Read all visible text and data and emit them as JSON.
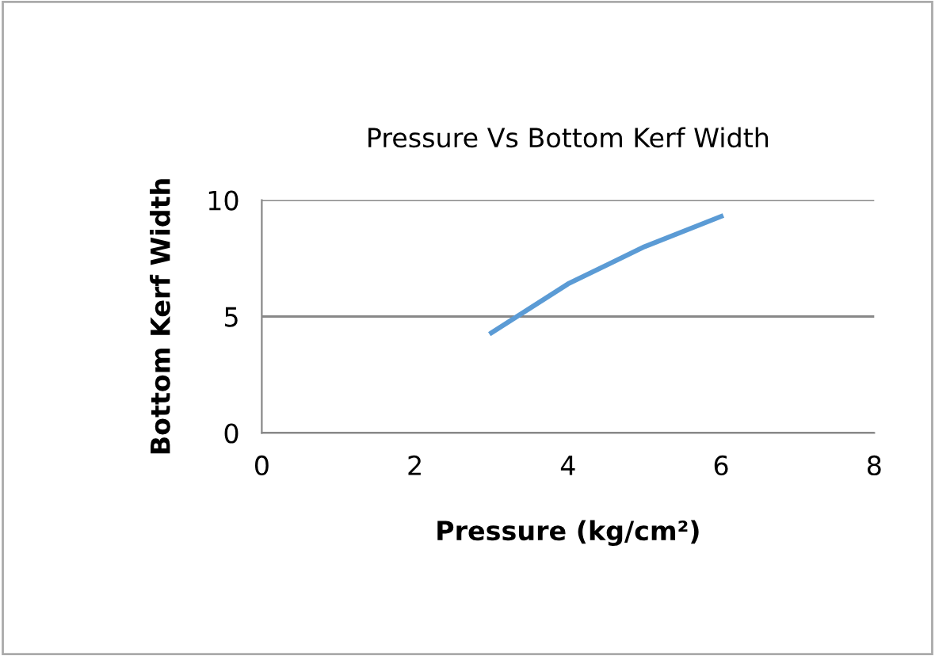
{
  "chart_data": {
    "type": "line",
    "title": "Pressure Vs Bottom Kerf Width",
    "xlabel": "Pressure (kg/cm²)",
    "ylabel": "Bottom Kerf Width",
    "series": [
      {
        "color": "#5b9bd5",
        "x": [
          3,
          4,
          5,
          6
        ],
        "values": [
          4.3,
          6.4,
          8.0,
          9.3
        ]
      }
    ],
    "xlim": [
      0,
      8
    ],
    "xticks": [
      0,
      2,
      4,
      6,
      8
    ],
    "ylim": [
      0,
      10
    ],
    "yticks": [
      0,
      5,
      10
    ],
    "grid": "y",
    "marker": "none",
    "line_style": "solid"
  }
}
